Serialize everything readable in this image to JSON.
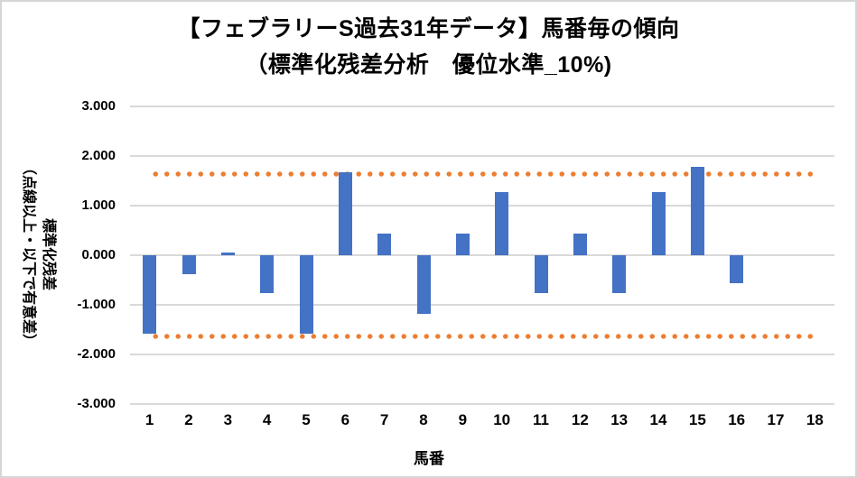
{
  "title": {
    "line1": "【フェブラリーS過去31年データ】馬番毎の傾向",
    "line2": "（標準化残差分析　優位水準_10%)"
  },
  "y_axis": {
    "title_line1": "標準化残差",
    "title_line2": "（点線以上・以下で有意差）",
    "ticks": [
      "3.000",
      "2.000",
      "1.000",
      "0.000",
      "-1.000",
      "-2.000",
      "-3.000"
    ]
  },
  "x_axis": {
    "title": "馬番"
  },
  "chart_data": {
    "type": "bar",
    "title": "【フェブラリーS過去31年データ】馬番毎の傾向（標準化残差分析　優位水準_10%)",
    "xlabel": "馬番",
    "ylabel": "標準化残差（点線以上・以下で有意差）",
    "categories": [
      "1",
      "2",
      "3",
      "4",
      "5",
      "6",
      "7",
      "8",
      "9",
      "10",
      "11",
      "12",
      "13",
      "14",
      "15",
      "16",
      "17",
      "18"
    ],
    "values": [
      -1.58,
      -0.38,
      0.05,
      -0.77,
      -1.58,
      1.68,
      0.44,
      -1.19,
      0.44,
      1.28,
      -0.77,
      0.44,
      -0.77,
      1.28,
      1.79,
      -0.56,
      null,
      null
    ],
    "ylim": [
      -3,
      3
    ],
    "grid": true,
    "legend": false,
    "threshold_lines": [
      1.645,
      -1.645
    ],
    "threshold_style": "dotted"
  },
  "colors": {
    "bar": "#4472C4",
    "threshold": "#ED7D31",
    "gridline": "#D9D9D9",
    "text": "#000000",
    "border": "#D6D6D6",
    "background": "#FFFFFF"
  }
}
